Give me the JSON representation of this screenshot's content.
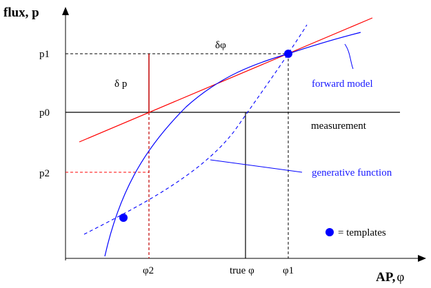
{
  "axes": {
    "y_title": "flux, p",
    "x_title_main": "AP,",
    "x_title_symbol": "φ"
  },
  "y_ticks": {
    "p1": "p1",
    "p0": "p0",
    "p2": "p2"
  },
  "x_ticks": {
    "phi2": "φ2",
    "true_phi": "true φ",
    "phi1": "φ1"
  },
  "annotations": {
    "delta_phi": "δφ",
    "delta_p": "δ p",
    "forward_model": "forward model",
    "measurement": "measurement",
    "generative_function": "generative function"
  },
  "legend": {
    "templates": "= templates"
  },
  "colors": {
    "axis": "#000000",
    "forward_model": "#0000ff",
    "tangent": "#ff0000",
    "template_marker": "#0000ff",
    "annotation_text": "#1a1aff"
  }
}
